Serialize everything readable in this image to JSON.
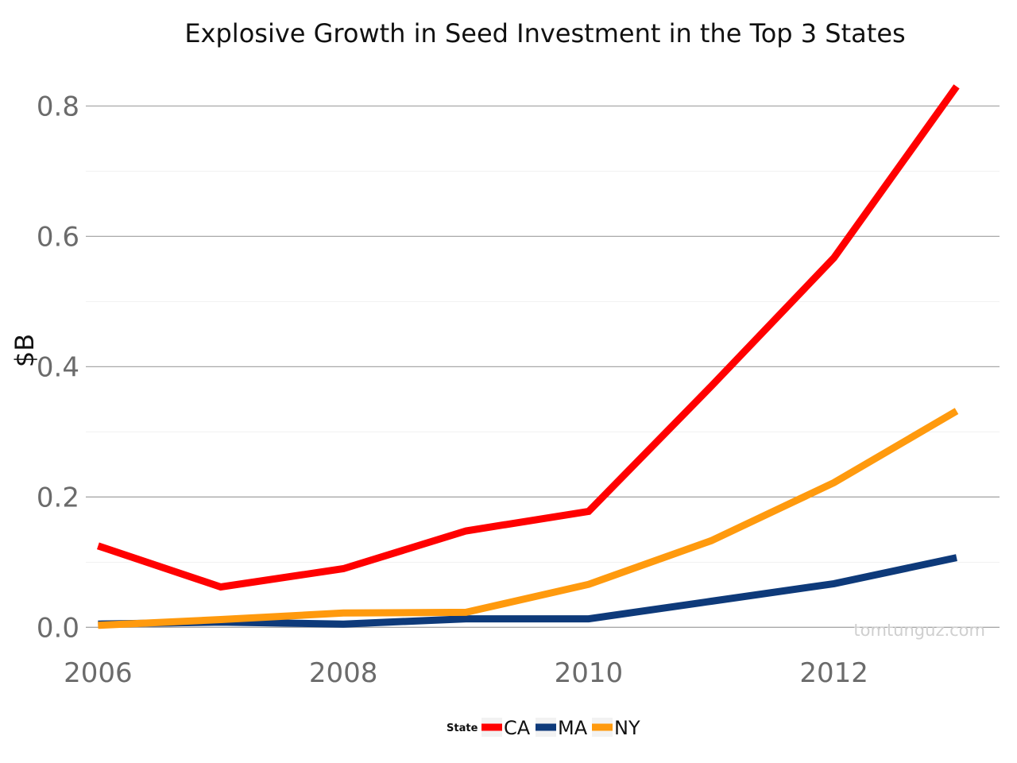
{
  "chart_data": {
    "type": "line",
    "title": "Explosive Growth in Seed Investment in the Top 3 States",
    "xlabel": "",
    "ylabel": "$B",
    "x": [
      2006,
      2007,
      2008,
      2009,
      2010,
      2011,
      2012,
      2013
    ],
    "xticks": [
      2006,
      2008,
      2010,
      2012
    ],
    "xtick_labels": [
      "2006",
      "2008",
      "2010",
      "2012"
    ],
    "yticks": [
      0.0,
      0.2,
      0.4,
      0.6,
      0.8
    ],
    "ytick_labels": [
      "0.0",
      "0.2",
      "0.4",
      "0.6",
      "0.8"
    ],
    "xlim": [
      2005.9,
      2013.35
    ],
    "ylim": [
      -0.035,
      0.87
    ],
    "grid": true,
    "legend_title": "State",
    "legend_position": "bottom",
    "watermark": "tomtunguz.com",
    "series": [
      {
        "name": "CA",
        "color": "#ff0000",
        "values": [
          0.125,
          0.062,
          0.09,
          0.148,
          0.178,
          0.37,
          0.567,
          0.83
        ]
      },
      {
        "name": "MA",
        "color": "#0e3a7a",
        "values": [
          0.005,
          0.008,
          0.005,
          0.013,
          0.013,
          0.04,
          0.067,
          0.107
        ]
      },
      {
        "name": "NY",
        "color": "#ff9a0e",
        "values": [
          0.003,
          0.012,
          0.022,
          0.023,
          0.066,
          0.133,
          0.222,
          0.332
        ]
      }
    ]
  }
}
